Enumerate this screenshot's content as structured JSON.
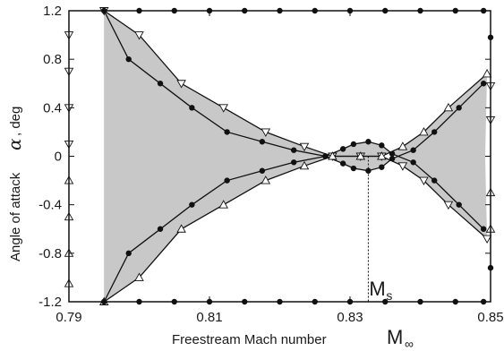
{
  "chart_data": {
    "type": "line",
    "xlabel": "Freestream Mach number",
    "xlabel_symbol": "M",
    "xlabel_symbol_sub": "∞",
    "ylabel": "Angle of attack",
    "ylabel_symbol": "α",
    "ylabel_unit": ", deg",
    "xlim": [
      0.79,
      0.85
    ],
    "ylim": [
      -1.2,
      1.2
    ],
    "xticks": [
      0.79,
      0.81,
      0.83,
      0.85
    ],
    "xtick_labels": [
      "0.79",
      "0.81",
      "0.83",
      "0.85"
    ],
    "yticks": [
      1.2,
      0.8,
      0.4,
      0,
      -0.4,
      -0.8,
      -1.2
    ],
    "ytick_labels": [
      "1.2",
      "0.8",
      "0.4",
      "0",
      "-0.4",
      "-0.8",
      "-1.2"
    ],
    "grid": false,
    "fill_color": "#c8c8c8",
    "line_color": "#111111",
    "annotation": {
      "label": "M",
      "sub": "s",
      "x": 0.8326
    },
    "series": [
      {
        "marker": "circle",
        "x": [
          0.795,
          0.7985,
          0.803,
          0.8075,
          0.8125,
          0.8175,
          0.822,
          0.8265,
          0.829,
          0.8305,
          0.8326,
          0.8345,
          0.836,
          0.839,
          0.842,
          0.8455,
          0.849
        ],
        "y": [
          1.2,
          0.8,
          0.6,
          0.4,
          0.2,
          0.12,
          0.05,
          0.0,
          0.06,
          0.1,
          0.12,
          0.09,
          0.02,
          -0.05,
          -0.2,
          -0.4,
          -0.6
        ]
      },
      {
        "marker": "circle",
        "x": [
          0.795,
          0.7985,
          0.803,
          0.8075,
          0.8125,
          0.8175,
          0.822,
          0.8265,
          0.829,
          0.8305,
          0.8326,
          0.8345,
          0.836,
          0.839,
          0.842,
          0.8455,
          0.849
        ],
        "y": [
          -1.2,
          -0.8,
          -0.6,
          -0.4,
          -0.2,
          -0.12,
          -0.05,
          0.0,
          -0.06,
          -0.1,
          -0.12,
          -0.09,
          -0.02,
          0.05,
          0.2,
          0.4,
          0.6
        ]
      },
      {
        "marker": "triangle-down",
        "x": [
          0.795,
          0.8,
          0.806,
          0.812,
          0.818,
          0.8235,
          0.8275,
          0.8315,
          0.8345,
          0.8375,
          0.8405,
          0.844,
          0.8495
        ],
        "y": [
          1.2,
          1.0,
          0.6,
          0.4,
          0.2,
          0.08,
          0.0,
          0.0,
          0.0,
          -0.08,
          -0.2,
          -0.4,
          -0.68
        ]
      },
      {
        "marker": "triangle-up",
        "x": [
          0.795,
          0.8,
          0.806,
          0.812,
          0.818,
          0.8235,
          0.8275,
          0.8315,
          0.8345,
          0.8375,
          0.8405,
          0.844,
          0.8495
        ],
        "y": [
          -1.2,
          -1.0,
          -0.6,
          -0.4,
          -0.2,
          -0.08,
          0.0,
          0.0,
          0.0,
          0.08,
          0.2,
          0.4,
          0.68
        ]
      },
      {
        "marker": "circle",
        "x": [
          0.795,
          0.8,
          0.805,
          0.81,
          0.815,
          0.82,
          0.825,
          0.83,
          0.835,
          0.84,
          0.845,
          0.849
        ],
        "y": [
          1.2,
          1.2,
          1.2,
          1.2,
          1.2,
          1.2,
          1.2,
          1.2,
          1.2,
          1.2,
          1.2,
          1.2
        ]
      },
      {
        "marker": "circle",
        "x": [
          0.795,
          0.8,
          0.805,
          0.81,
          0.815,
          0.82,
          0.825,
          0.83,
          0.835,
          0.84,
          0.845,
          0.849
        ],
        "y": [
          -1.2,
          -1.2,
          -1.2,
          -1.2,
          -1.2,
          -1.2,
          -1.2,
          -1.2,
          -1.2,
          -1.2,
          -1.2,
          -1.2
        ]
      },
      {
        "marker": "circle",
        "x": [
          0.85,
          0.85
        ],
        "y": [
          0.98,
          -0.92
        ]
      },
      {
        "marker": "triangle-down",
        "x": [
          0.79,
          0.79,
          0.79,
          0.79,
          0.85,
          0.85
        ],
        "y": [
          1.0,
          0.7,
          0.4,
          0.1,
          0.58,
          0.3
        ]
      },
      {
        "marker": "triangle-up",
        "x": [
          0.79,
          0.79,
          0.79,
          0.79,
          0.85,
          0.85
        ],
        "y": [
          -0.2,
          -0.5,
          -0.8,
          -1.05,
          -0.3,
          -0.6
        ]
      }
    ]
  }
}
